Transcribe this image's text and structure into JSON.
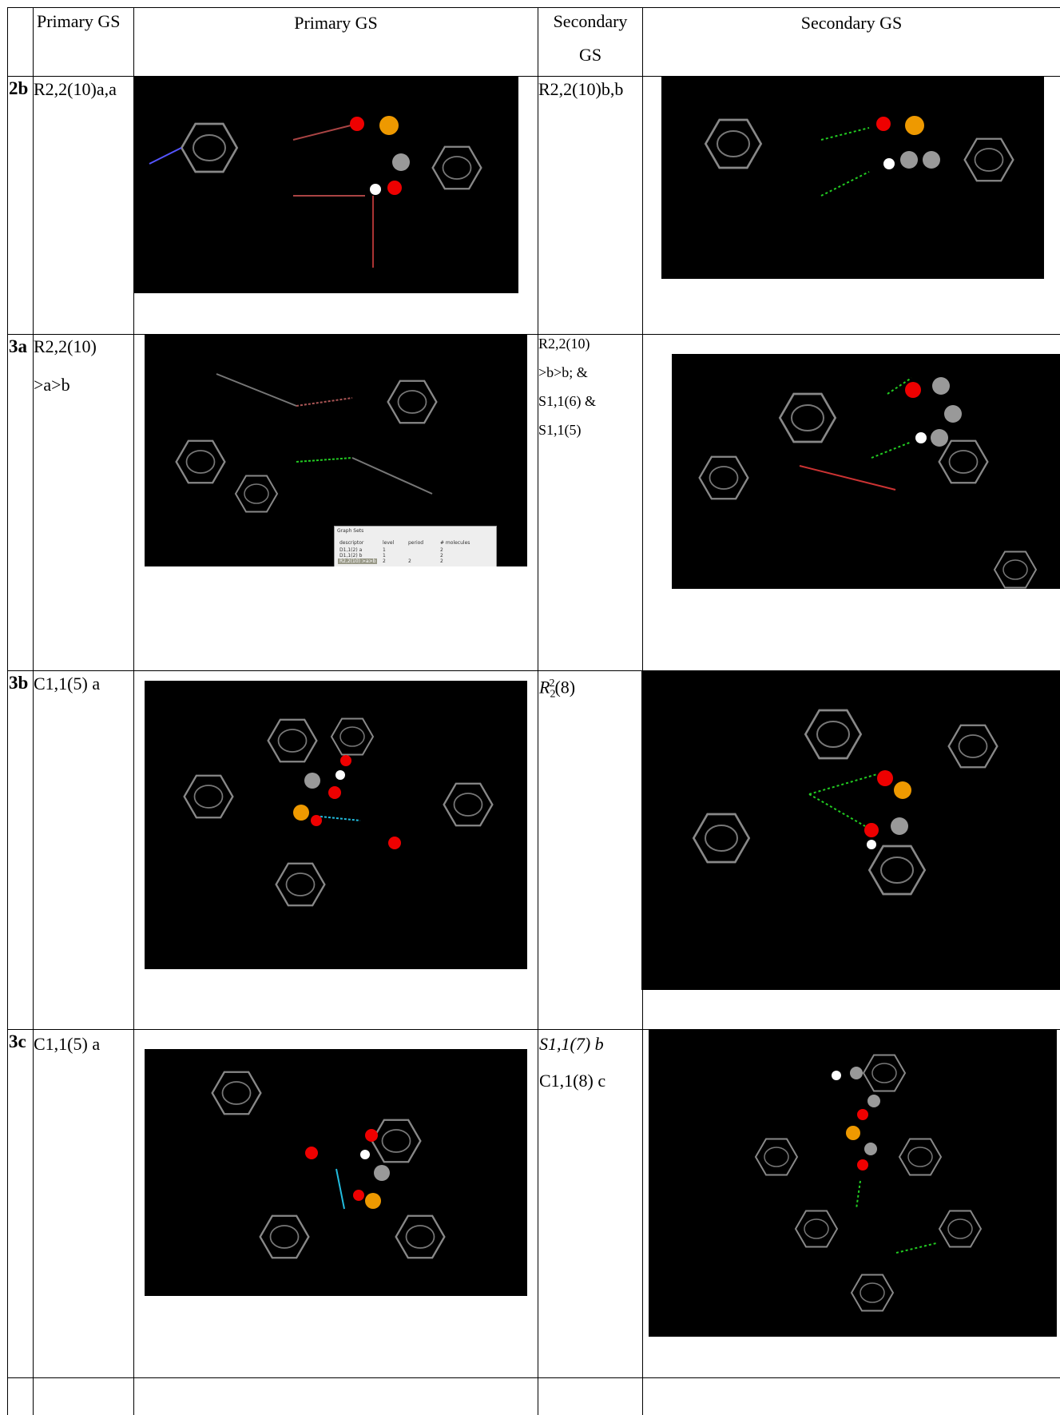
{
  "table": {
    "header": [
      "Primary GS",
      "Primary GS",
      "Secondary GS",
      "Secondary GS"
    ],
    "rows": [
      {
        "label": "2b",
        "primary": [
          "R2,2(10)a,a"
        ],
        "secondary": [
          "R2,2(10)b,b"
        ]
      },
      {
        "label": "3a",
        "primary": [
          "R2,2(10)",
          ">a>b"
        ],
        "secondary": [
          "R2,2(10)",
          ">b>b; &",
          "S1,1(6) &",
          "S1,1(5)"
        ]
      },
      {
        "label": "3b",
        "primary": [
          "C1,1(5) a"
        ],
        "secondary_notation": {
          "symbol": "R",
          "subscript": "2",
          "superscript": "2",
          "rest": "(8)"
        }
      },
      {
        "label": "3c",
        "primary": [
          "C1,1(5) a"
        ],
        "secondary": [
          "S1,1(7) b",
          "C1,1(8) c"
        ]
      }
    ]
  },
  "graph_sets_window": {
    "title": "Graph Sets",
    "columns": [
      "descriptor",
      "level",
      "period",
      "# molecules"
    ],
    "rows": [
      {
        "descriptor": "D1,1(2) a",
        "level": "1",
        "molecules": "2"
      },
      {
        "descriptor": "D1,1(2) b",
        "level": "1",
        "molecules": "2"
      },
      {
        "descriptor": "R2,2(10) >a>b",
        "level": "2",
        "period": "2",
        "molecules": "2"
      }
    ]
  }
}
